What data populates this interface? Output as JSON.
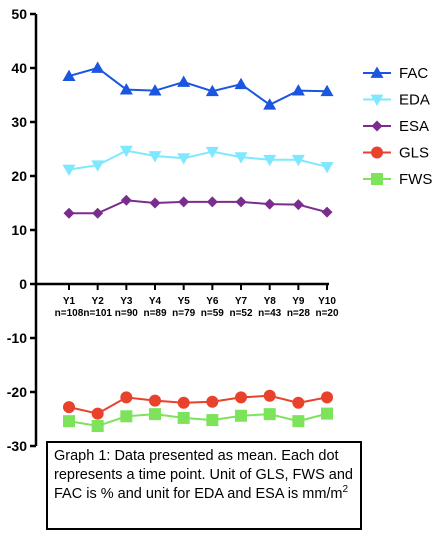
{
  "chart_data": {
    "type": "line",
    "categories": [
      "Y1",
      "Y2",
      "Y3",
      "Y4",
      "Y5",
      "Y6",
      "Y7",
      "Y8",
      "Y9",
      "Y10"
    ],
    "sample_sizes": [
      "n=108",
      "n=101",
      "n=90",
      "n=89",
      "n=79",
      "n=59",
      "n=52",
      "n=43",
      "n=28",
      "n=20"
    ],
    "ylim": [
      -30,
      50
    ],
    "yticks": [
      -30,
      -20,
      -10,
      0,
      10,
      20,
      30,
      40,
      50
    ],
    "legend_position": "right",
    "grid": false,
    "series": [
      {
        "name": "FAC",
        "color": "#1a56e0",
        "marker": "triangle-up",
        "values": [
          38.5,
          40,
          36,
          35.8,
          37.4,
          35.7,
          37,
          33.2,
          35.8,
          35.7
        ]
      },
      {
        "name": "EDA",
        "color": "#7fe8ff",
        "marker": "triangle-down",
        "values": [
          21.2,
          22,
          24.7,
          23.7,
          23.3,
          24.5,
          23.5,
          23,
          23,
          21.7
        ]
      },
      {
        "name": "ESA",
        "color": "#7b2d8e",
        "marker": "diamond",
        "values": [
          13.1,
          13.1,
          15.5,
          15,
          15.2,
          15.2,
          15.2,
          14.8,
          14.7,
          13.3
        ]
      },
      {
        "name": "GLS",
        "color": "#e8412c",
        "marker": "circle",
        "values": [
          -22.8,
          -24,
          -21,
          -21.6,
          -22,
          -21.8,
          -21,
          -20.7,
          -22,
          -21
        ]
      },
      {
        "name": "FWS",
        "color": "#7ce35a",
        "marker": "square",
        "values": [
          -25.4,
          -26.3,
          -24.5,
          -24.1,
          -24.8,
          -25.2,
          -24.4,
          -24.1,
          -25.4,
          -24
        ]
      }
    ]
  },
  "caption": {
    "text": "Graph 1: Data presented as mean. Each dot represents a time point. Unit of GLS, FWS and FAC is % and unit for EDA and ESA is mm/m",
    "superscript": "2"
  }
}
